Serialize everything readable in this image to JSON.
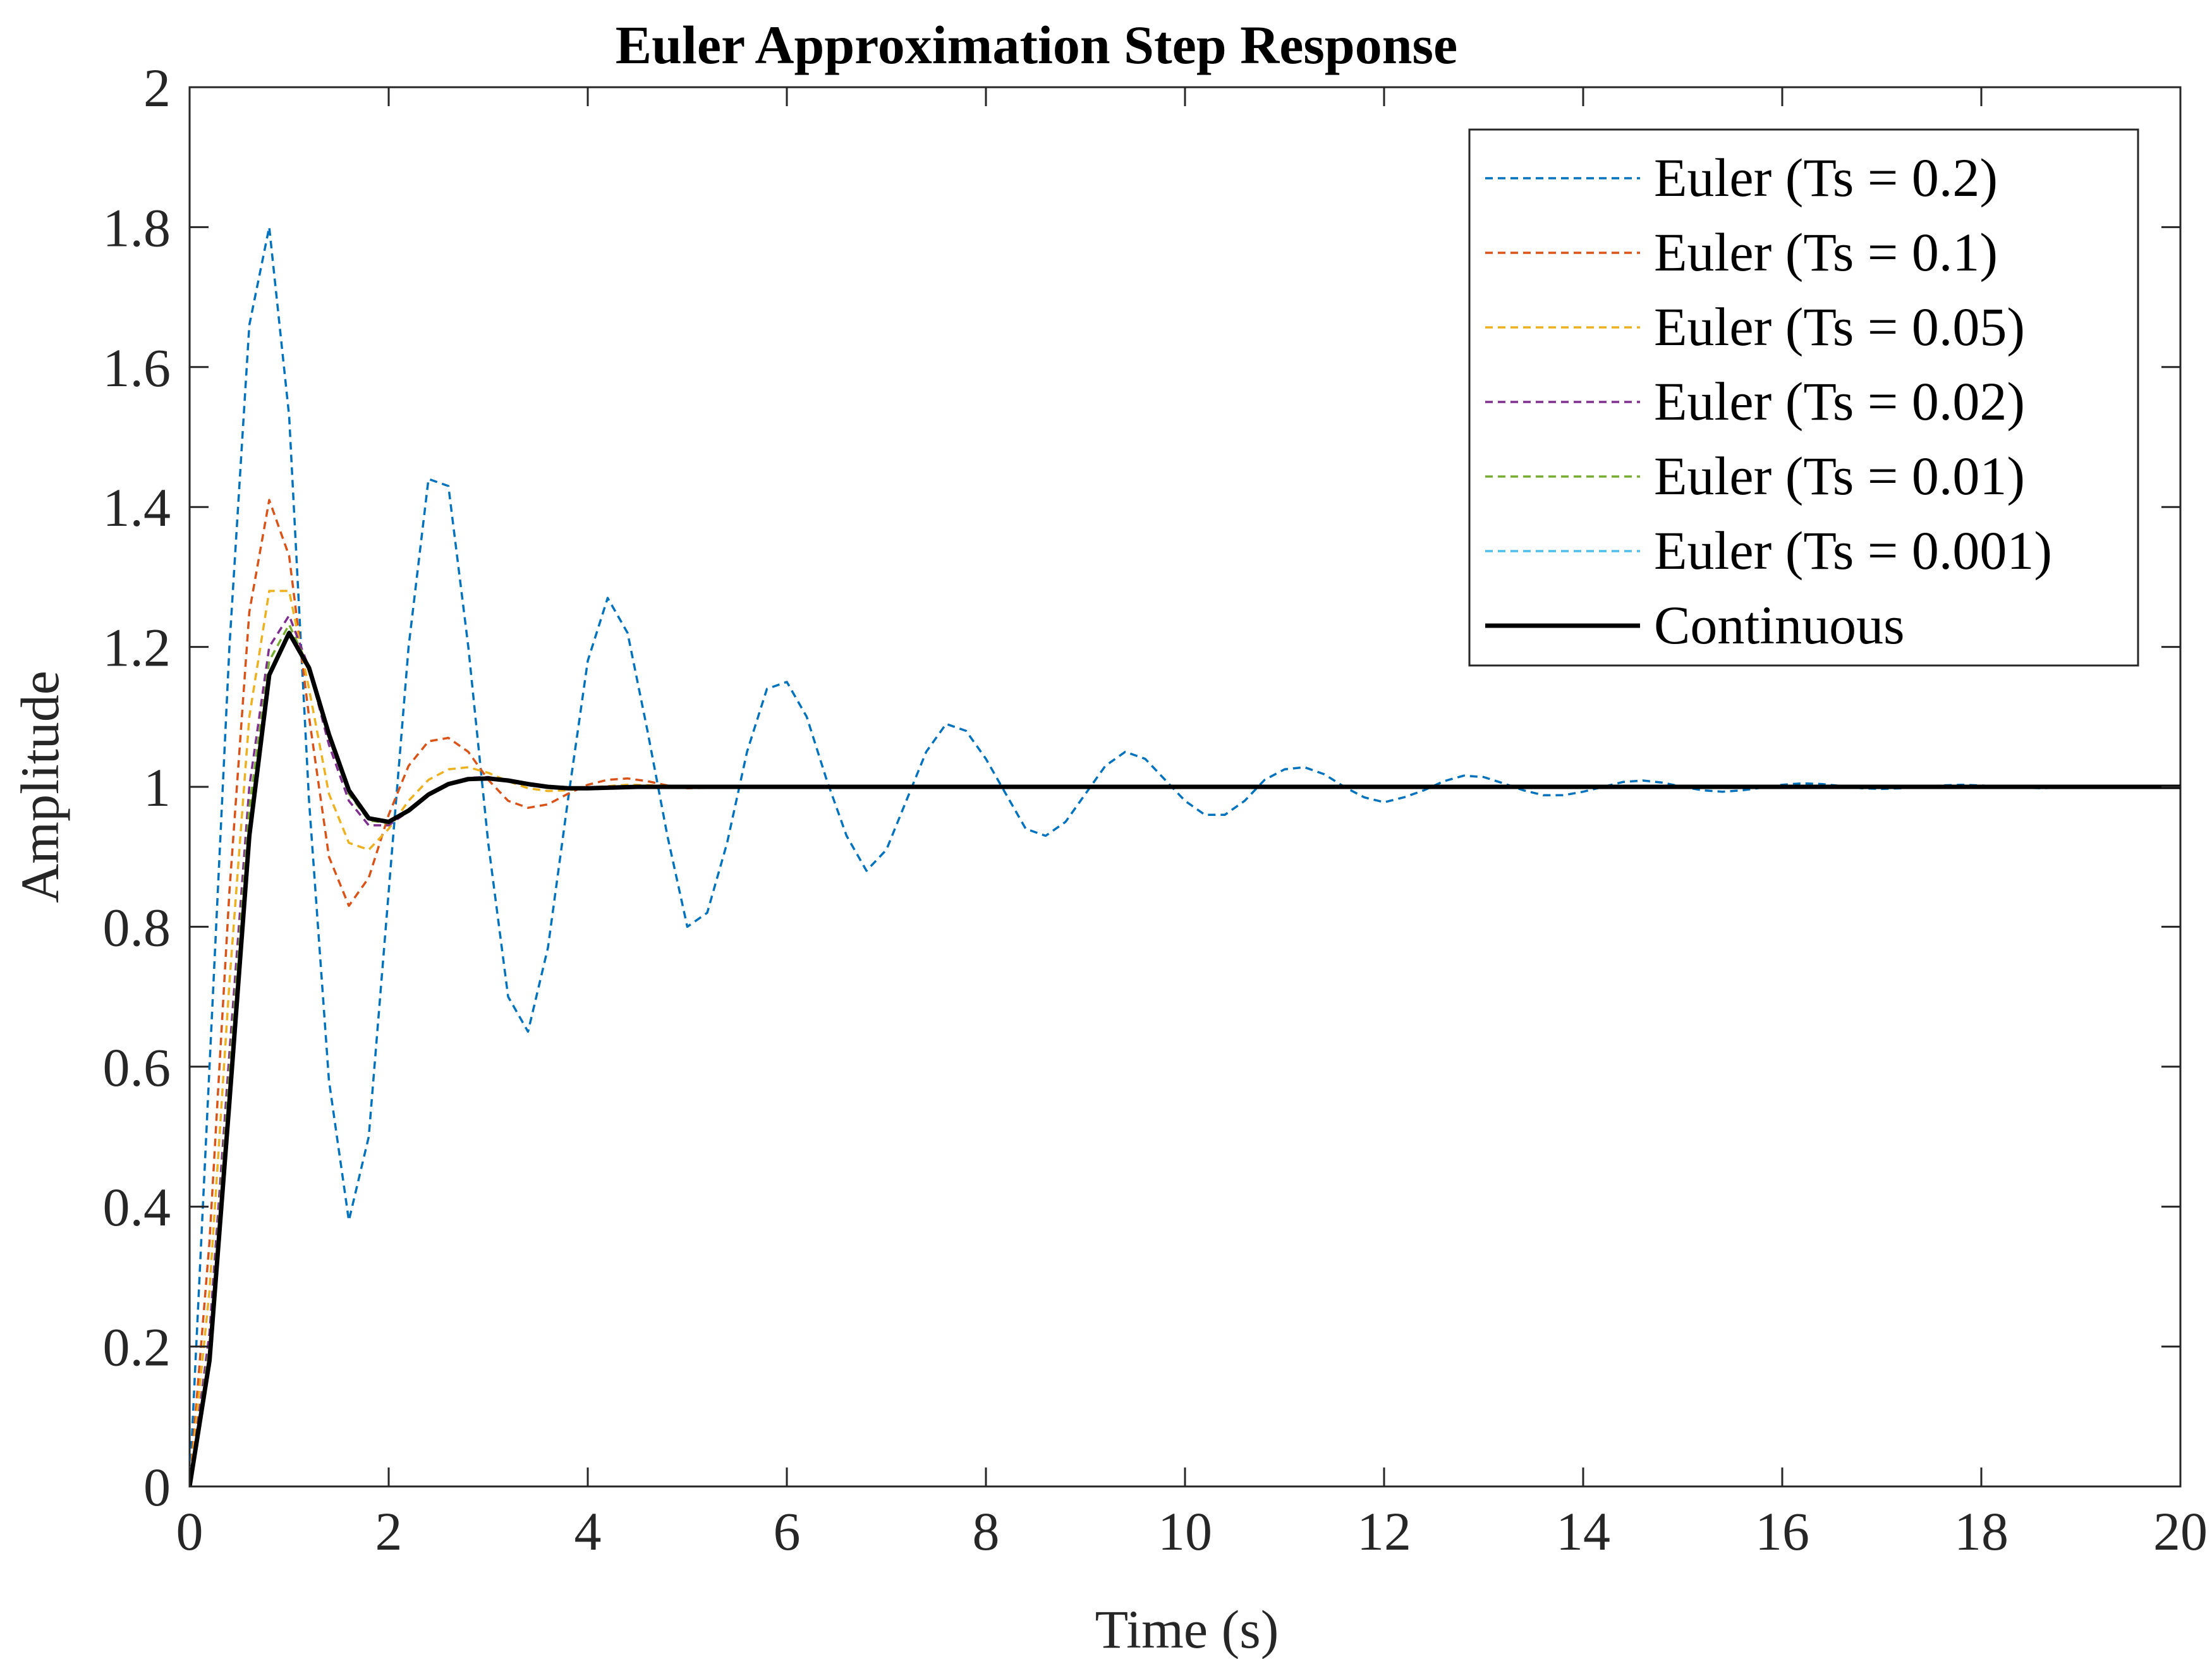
{
  "chart_data": {
    "type": "line",
    "title": "Euler Approximation Step Response",
    "xlabel": "Time (s)",
    "ylabel": "Amplitude",
    "xlim": [
      0,
      20
    ],
    "ylim": [
      0,
      2
    ],
    "xticks": [
      "0",
      "2",
      "4",
      "6",
      "8",
      "10",
      "12",
      "14",
      "16",
      "18",
      "20"
    ],
    "yticks": [
      "0",
      "0.2",
      "0.4",
      "0.6",
      "0.8",
      "1",
      "1.2",
      "1.4",
      "1.6",
      "1.8",
      "2"
    ],
    "grid": false,
    "legend_position": "top-right",
    "series": [
      {
        "name": "Euler (Ts = 0.2)",
        "color": "#0072BD",
        "style": "dashed",
        "x": [
          0,
          0.2,
          0.4,
          0.6,
          0.8,
          1.0,
          1.2,
          1.4,
          1.6,
          1.8,
          2.0,
          2.2,
          2.4,
          2.6,
          2.8,
          3.0,
          3.2,
          3.4,
          3.6,
          3.8,
          4.0,
          4.2,
          4.4,
          4.6,
          4.8,
          5.0,
          5.2,
          5.4,
          5.6,
          5.8,
          6.0,
          6.2,
          6.4,
          6.6,
          6.8,
          7.0,
          7.2,
          7.4,
          7.6,
          7.8,
          8.0,
          8.2,
          8.4,
          8.6,
          8.8,
          9.0,
          9.2,
          9.4,
          9.6,
          9.8,
          10.0,
          10.2,
          10.4,
          10.6,
          10.8,
          11.0,
          11.2,
          11.4,
          11.6,
          11.8,
          12.0,
          12.2,
          12.4,
          12.6,
          12.8,
          13.0,
          13.2,
          13.4,
          13.6,
          13.8,
          14.0,
          14.2,
          14.4,
          14.6,
          14.8,
          15.0,
          15.2,
          15.4,
          15.6,
          15.8,
          16.0,
          16.2,
          16.4,
          16.6,
          16.8,
          17.0,
          17.2,
          17.4,
          17.6,
          17.8,
          18.0,
          18.2,
          18.4,
          18.6,
          18.8,
          19.0,
          19.2,
          19.4,
          19.6,
          19.8,
          20.0
        ],
        "y": [
          0,
          0.6,
          1.2,
          1.66,
          1.8,
          1.53,
          0.98,
          0.58,
          0.38,
          0.5,
          0.85,
          1.2,
          1.44,
          1.43,
          1.2,
          0.92,
          0.7,
          0.65,
          0.77,
          0.98,
          1.18,
          1.27,
          1.22,
          1.08,
          0.93,
          0.8,
          0.82,
          0.92,
          1.05,
          1.14,
          1.15,
          1.1,
          1.01,
          0.93,
          0.88,
          0.91,
          0.98,
          1.05,
          1.09,
          1.08,
          1.04,
          0.99,
          0.94,
          0.93,
          0.95,
          0.99,
          1.03,
          1.05,
          1.04,
          1.01,
          0.98,
          0.96,
          0.96,
          0.98,
          1.01,
          1.025,
          1.028,
          1.018,
          1.0,
          0.985,
          0.978,
          0.985,
          0.995,
          1.008,
          1.016,
          1.014,
          1.005,
          0.995,
          0.988,
          0.988,
          0.993,
          1.0,
          1.007,
          1.009,
          1.006,
          1.0,
          0.995,
          0.993,
          0.995,
          0.999,
          1.003,
          1.005,
          1.004,
          1.001,
          0.998,
          0.997,
          0.998,
          1.0,
          1.002,
          1.003,
          1.002,
          1.0,
          0.999,
          0.998,
          0.999,
          1.0,
          1.001,
          1.001,
          1.001,
          1.0,
          1.0
        ]
      },
      {
        "name": "Euler (Ts = 0.1)",
        "color": "#D95319",
        "style": "dashed",
        "x": [
          0,
          0.2,
          0.4,
          0.6,
          0.8,
          1.0,
          1.2,
          1.4,
          1.6,
          1.8,
          2.0,
          2.2,
          2.4,
          2.6,
          2.8,
          3.0,
          3.2,
          3.4,
          3.6,
          3.8,
          4.0,
          4.2,
          4.4,
          4.6,
          4.8,
          5.0,
          5.4,
          6.0,
          8.0,
          20.0
        ],
        "y": [
          0,
          0.35,
          0.85,
          1.25,
          1.41,
          1.33,
          1.1,
          0.9,
          0.83,
          0.87,
          0.96,
          1.03,
          1.065,
          1.07,
          1.05,
          1.01,
          0.98,
          0.97,
          0.975,
          0.99,
          1.003,
          1.01,
          1.012,
          1.008,
          1.002,
          0.998,
          0.999,
          1.0,
          1.0,
          1.0
        ]
      },
      {
        "name": "Euler (Ts = 0.05)",
        "color": "#EDB120",
        "style": "dashed",
        "x": [
          0,
          0.2,
          0.4,
          0.6,
          0.8,
          1.0,
          1.2,
          1.4,
          1.6,
          1.8,
          2.0,
          2.2,
          2.4,
          2.6,
          2.8,
          3.0,
          3.2,
          3.4,
          3.6,
          3.8,
          4.0,
          4.4,
          5.0,
          6.0,
          20.0
        ],
        "y": [
          0,
          0.28,
          0.72,
          1.1,
          1.28,
          1.28,
          1.14,
          0.99,
          0.92,
          0.91,
          0.94,
          0.98,
          1.01,
          1.025,
          1.028,
          1.02,
          1.008,
          0.998,
          0.994,
          0.995,
          0.999,
          1.003,
          1.001,
          1.0,
          1.0
        ]
      },
      {
        "name": "Euler (Ts = 0.02)",
        "color": "#7E2F8E",
        "style": "dashed",
        "x": [
          0,
          0.2,
          0.4,
          0.6,
          0.8,
          1.0,
          1.2,
          1.4,
          1.6,
          1.8,
          2.0,
          2.2,
          2.4,
          2.6,
          2.8,
          3.0,
          3.2,
          3.4,
          3.6,
          3.8,
          4.0,
          4.5,
          5.0,
          6.0,
          20.0
        ],
        "y": [
          0,
          0.22,
          0.62,
          1.0,
          1.2,
          1.245,
          1.17,
          1.06,
          0.98,
          0.945,
          0.945,
          0.965,
          0.99,
          1.005,
          1.013,
          1.014,
          1.009,
          1.003,
          0.999,
          0.998,
          0.998,
          1.0,
          1.0,
          1.0,
          1.0
        ]
      },
      {
        "name": "Euler (Ts = 0.01)",
        "color": "#77AC30",
        "style": "dashed",
        "x": [
          0,
          0.2,
          0.4,
          0.6,
          0.8,
          1.0,
          1.2,
          1.4,
          1.6,
          1.8,
          2.0,
          2.2,
          2.4,
          2.6,
          2.8,
          3.0,
          3.2,
          3.4,
          3.6,
          3.8,
          4.0,
          4.5,
          5.0,
          6.0,
          20.0
        ],
        "y": [
          0,
          0.2,
          0.59,
          0.97,
          1.18,
          1.232,
          1.17,
          1.07,
          0.99,
          0.952,
          0.948,
          0.966,
          0.99,
          1.004,
          1.012,
          1.013,
          1.009,
          1.004,
          1.0,
          0.998,
          0.998,
          1.0,
          1.0,
          1.0,
          1.0
        ]
      },
      {
        "name": "Euler (Ts = 0.001)",
        "color": "#4DBEEE",
        "style": "dashed",
        "x": [
          0,
          0.2,
          0.4,
          0.6,
          0.8,
          1.0,
          1.2,
          1.4,
          1.6,
          1.8,
          2.0,
          2.2,
          2.4,
          2.6,
          2.8,
          3.0,
          3.2,
          3.4,
          3.6,
          3.8,
          4.0,
          4.5,
          5.0,
          6.0,
          20.0
        ],
        "y": [
          0,
          0.18,
          0.56,
          0.94,
          1.16,
          1.222,
          1.17,
          1.075,
          0.995,
          0.955,
          0.95,
          0.966,
          0.989,
          1.004,
          1.011,
          1.012,
          1.009,
          1.004,
          1.0,
          0.998,
          0.998,
          1.0,
          1.0,
          1.0,
          1.0
        ]
      },
      {
        "name": "Continuous",
        "color": "#000000",
        "style": "solid",
        "x": [
          0,
          0.2,
          0.4,
          0.6,
          0.8,
          1.0,
          1.2,
          1.4,
          1.6,
          1.8,
          2.0,
          2.2,
          2.4,
          2.6,
          2.8,
          3.0,
          3.2,
          3.4,
          3.6,
          3.8,
          4.0,
          4.5,
          5.0,
          6.0,
          20.0
        ],
        "y": [
          0,
          0.18,
          0.55,
          0.93,
          1.16,
          1.22,
          1.17,
          1.075,
          0.995,
          0.955,
          0.95,
          0.966,
          0.989,
          1.004,
          1.011,
          1.012,
          1.009,
          1.004,
          1.0,
          0.998,
          0.998,
          1.0,
          1.0,
          1.0,
          1.0
        ]
      }
    ]
  }
}
